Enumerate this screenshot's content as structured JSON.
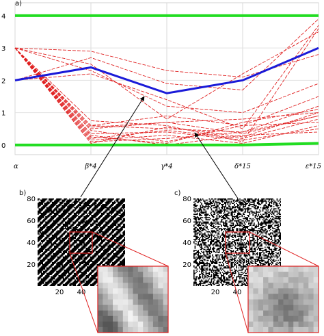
{
  "chart_data": [
    {
      "type": "line",
      "panel_label": "a)",
      "x_labels": [
        "α",
        "β*4",
        "γ*4",
        "δ*15",
        "ε*15"
      ],
      "y_ticks": [
        "0",
        "1",
        "2",
        "3",
        "4"
      ],
      "ylim": [
        -0.3,
        4.4
      ],
      "grid": true,
      "colors": {
        "bounds": "#22dd22",
        "highlight": "#1a1ad8",
        "samples": "#e02020"
      },
      "series": [
        {
          "role": "bound",
          "values": [
            4.0,
            4.0,
            4.0,
            4.0,
            4.0
          ]
        },
        {
          "role": "bound",
          "values": [
            0.0,
            0.0,
            0.0,
            0.0,
            0.05
          ]
        },
        {
          "role": "highlight",
          "values": [
            2.0,
            2.4,
            1.6,
            2.0,
            3.0
          ]
        },
        {
          "role": "sample",
          "values": [
            3.0,
            2.9,
            2.3,
            2.1,
            2.8
          ]
        },
        {
          "role": "sample",
          "values": [
            2.0,
            2.7,
            1.9,
            1.7,
            3.9
          ]
        },
        {
          "role": "sample",
          "values": [
            3.0,
            2.3,
            1.2,
            1.0,
            1.9
          ]
        },
        {
          "role": "sample",
          "values": [
            2.0,
            2.2,
            1.4,
            0.5,
            3.7
          ]
        },
        {
          "role": "sample",
          "values": [
            3.0,
            2.5,
            0.8,
            2.2,
            3.5
          ]
        },
        {
          "role": "sample",
          "values": [
            3.0,
            0.75,
            0.6,
            0.1,
            3.6
          ]
        },
        {
          "role": "sample",
          "values": [
            3.0,
            0.6,
            0.5,
            0.4,
            0.9
          ]
        },
        {
          "role": "sample",
          "values": [
            3.0,
            0.5,
            0.7,
            0.8,
            1.0
          ]
        },
        {
          "role": "sample",
          "values": [
            3.0,
            0.45,
            0.1,
            0.6,
            1.5
          ]
        },
        {
          "role": "sample",
          "values": [
            3.0,
            0.3,
            0.0,
            0.3,
            0.4
          ]
        },
        {
          "role": "sample",
          "values": [
            3.0,
            0.25,
            0.05,
            0.7,
            1.1
          ]
        },
        {
          "role": "sample",
          "values": [
            3.0,
            0.2,
            0.45,
            0.2,
            0.8
          ]
        },
        {
          "role": "sample",
          "values": [
            3.0,
            0.15,
            0.3,
            0.05,
            0.6
          ]
        },
        {
          "role": "sample",
          "values": [
            3.0,
            0.1,
            0.2,
            0.4,
            1.2
          ]
        },
        {
          "role": "sample",
          "values": [
            3.0,
            0.05,
            0.55,
            0.25,
            1.0
          ]
        },
        {
          "role": "sample",
          "values": [
            3.0,
            0.6,
            0.9,
            0.6,
            0.7
          ]
        },
        {
          "role": "sample",
          "values": [
            3.0,
            0.35,
            0.4,
            0.15,
            0.5
          ]
        },
        {
          "role": "sample",
          "values": [
            3.0,
            0.55,
            0.7,
            0.35,
            0.9
          ]
        }
      ]
    },
    {
      "type": "heatmap",
      "panel_label": "b)",
      "x_ticks": [
        "20",
        "40"
      ],
      "y_ticks": [
        "20",
        "40",
        "60",
        "80"
      ],
      "pattern": "diagonal-stripes"
    },
    {
      "type": "heatmap",
      "panel_label": "c)",
      "x_ticks": [
        "20",
        "40"
      ],
      "y_ticks": [
        "20",
        "40",
        "60",
        "80"
      ],
      "pattern": "random-noise"
    }
  ]
}
